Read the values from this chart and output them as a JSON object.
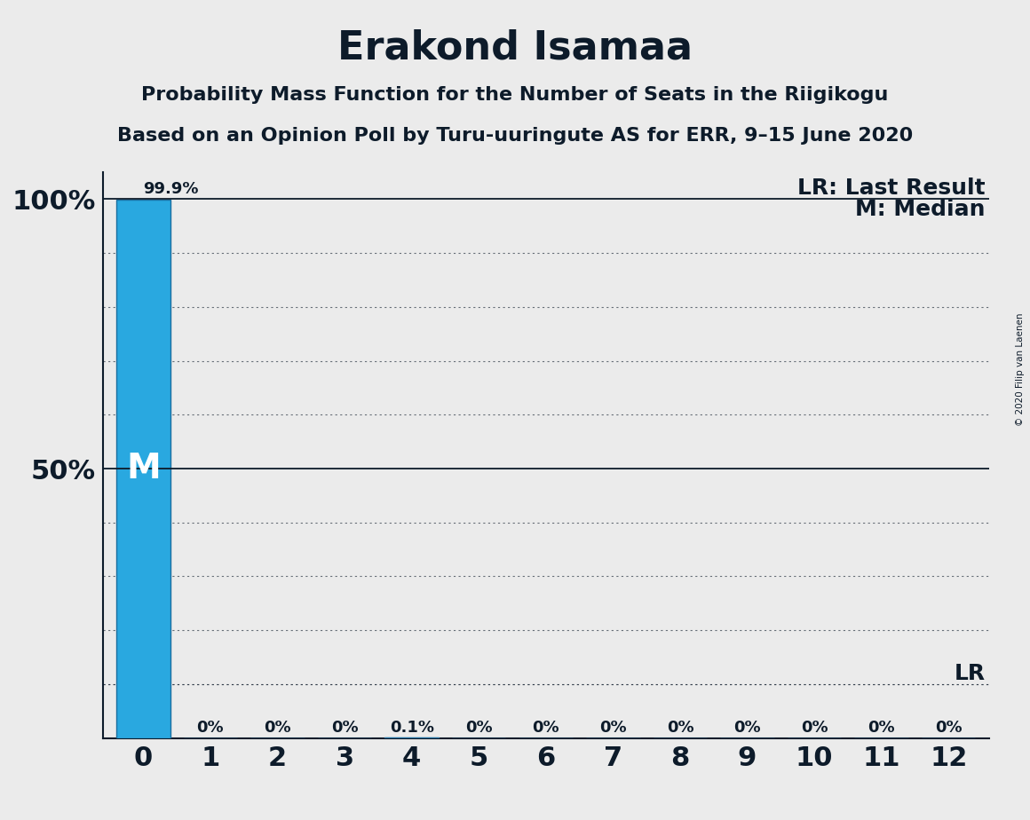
{
  "title": "Erakond Isamaa",
  "subtitle1": "Probability Mass Function for the Number of Seats in the Riigikogu",
  "subtitle2": "Based on an Opinion Poll by Turu-uuringute AS for ERR, 9–15 June 2020",
  "copyright": "© 2020 Filip van Laenen",
  "categories": [
    0,
    1,
    2,
    3,
    4,
    5,
    6,
    7,
    8,
    9,
    10,
    11,
    12
  ],
  "values": [
    0.999,
    0.0,
    0.0,
    0.0,
    0.001,
    0.0,
    0.0,
    0.0,
    0.0,
    0.0,
    0.0,
    0.0,
    0.0
  ],
  "bar_labels": [
    "99.9%",
    "0%",
    "0%",
    "0%",
    "0.1%",
    "0%",
    "0%",
    "0%",
    "0%",
    "0%",
    "0%",
    "0%",
    "0%"
  ],
  "bar_color": "#29A8E0",
  "bar_edge_color": "#1A6EA0",
  "background_color": "#EBEBEB",
  "text_color": "#0D1B2A",
  "median_value": 0.5,
  "median_label": "M",
  "lr_value": 0.1,
  "lr_label": "LR",
  "legend_lr": "LR: Last Result",
  "legend_m": "M: Median",
  "ytick_values": [
    0.5,
    1.0
  ],
  "ytick_labels": [
    "50%",
    "100%"
  ],
  "dotted_lines": [
    0.1,
    0.2,
    0.3,
    0.4,
    0.6,
    0.7,
    0.8,
    0.9
  ],
  "solid_lines": [
    0.5,
    1.0
  ],
  "ylim": [
    0,
    1.05
  ],
  "title_fontsize": 32,
  "subtitle_fontsize": 16,
  "axis_label_fontsize": 22,
  "bar_label_fontsize": 13,
  "legend_fontsize": 18,
  "median_label_fontsize": 28
}
